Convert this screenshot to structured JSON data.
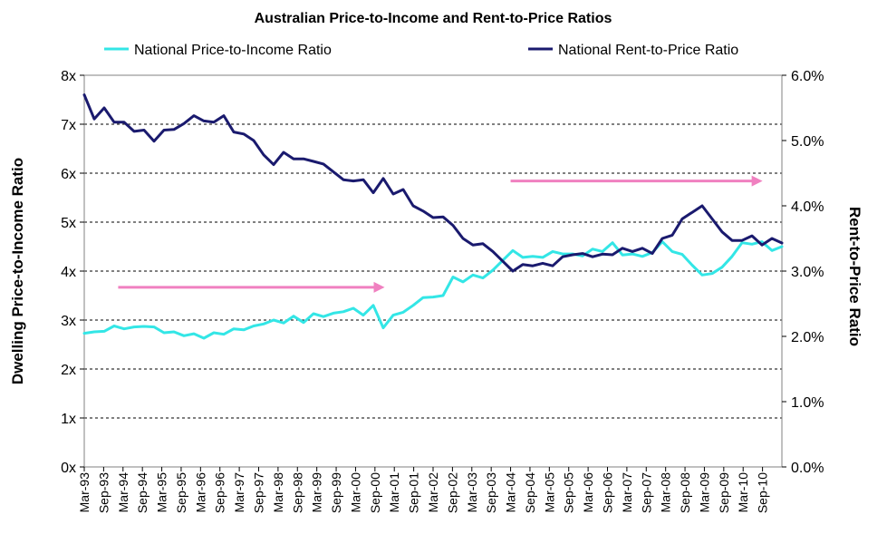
{
  "chart_data": {
    "type": "line",
    "title": "Australian Price-to-Income and Rent-to-Price Ratios",
    "ylabel_left": "Dwelling Price-to-Income Ratio",
    "ylabel_right": "Rent-to-Price Ratio",
    "ylim_left": [
      0,
      8
    ],
    "ylim_right": [
      0,
      6
    ],
    "yticks_left": [
      "0x",
      "1x",
      "2x",
      "3x",
      "4x",
      "5x",
      "6x",
      "7x",
      "8x"
    ],
    "yticks_right": [
      "0.0%",
      "1.0%",
      "2.0%",
      "3.0%",
      "4.0%",
      "5.0%",
      "6.0%"
    ],
    "grid": "horizontal dashed",
    "legend_position": "top",
    "x_tick_labels": [
      "Mar-93",
      "Sep-93",
      "Mar-94",
      "Sep-94",
      "Mar-95",
      "Sep-95",
      "Mar-96",
      "Sep-96",
      "Mar-97",
      "Sep-97",
      "Mar-98",
      "Sep-98",
      "Mar-99",
      "Sep-99",
      "Mar-00",
      "Sep-00",
      "Mar-01",
      "Sep-01",
      "Mar-02",
      "Sep-02",
      "Mar-03",
      "Sep-03",
      "Mar-04",
      "Sep-04",
      "Mar-05",
      "Sep-05",
      "Mar-06",
      "Sep-06",
      "Mar-07",
      "Sep-07",
      "Mar-08",
      "Sep-08",
      "Mar-09",
      "Sep-09",
      "Mar-10",
      "Sep-10"
    ],
    "series": [
      {
        "name": "National Price-to-Income Ratio",
        "axis": "left",
        "color": "#33e6e6",
        "values": [
          2.73,
          2.76,
          2.77,
          2.88,
          2.82,
          2.86,
          2.87,
          2.86,
          2.74,
          2.76,
          2.68,
          2.72,
          2.63,
          2.74,
          2.71,
          2.82,
          2.8,
          2.88,
          2.92,
          3,
          2.94,
          3.08,
          2.95,
          3.13,
          3.07,
          3.14,
          3.17,
          3.24,
          3.1,
          3.3,
          2.84,
          3.1,
          3.16,
          3.3,
          3.46,
          3.47,
          3.5,
          3.88,
          3.78,
          3.92,
          3.86,
          4.02,
          4.22,
          4.42,
          4.28,
          4.3,
          4.28,
          4.4,
          4.35,
          4.35,
          4.31,
          4.45,
          4.4,
          4.58,
          4.33,
          4.35,
          4.3,
          4.38,
          4.6,
          4.4,
          4.34,
          4.12,
          3.92,
          3.95,
          4.08,
          4.3,
          4.58,
          4.55,
          4.6,
          4.42,
          4.5
        ]
      },
      {
        "name": "National Rent-to-Price Ratio",
        "axis": "right",
        "color": "#1a1a6e",
        "values": [
          5.7,
          5.33,
          5.5,
          5.28,
          5.28,
          5.14,
          5.16,
          4.99,
          5.16,
          5.17,
          5.26,
          5.38,
          5.3,
          5.28,
          5.38,
          5.13,
          5.1,
          5.0,
          4.78,
          4.63,
          4.82,
          4.72,
          4.72,
          4.68,
          4.64,
          4.52,
          4.4,
          4.38,
          4.4,
          4.2,
          4.42,
          4.18,
          4.25,
          4.0,
          3.92,
          3.82,
          3.83,
          3.7,
          3.5,
          3.4,
          3.42,
          3.3,
          3.15,
          3.0,
          3.1,
          3.08,
          3.12,
          3.08,
          3.22,
          3.25,
          3.27,
          3.22,
          3.26,
          3.25,
          3.35,
          3.3,
          3.35,
          3.27,
          3.5,
          3.55,
          3.8,
          3.9,
          4.0,
          3.8,
          3.6,
          3.47,
          3.47,
          3.54,
          3.4,
          3.5,
          3.43
        ]
      }
    ],
    "annotations": [
      {
        "type": "arrow",
        "color": "#f080c0",
        "description": "flat trend arrow",
        "from": {
          "x": 1.75,
          "y": 3.67
        },
        "to": {
          "x": 15.5,
          "y": 3.67
        },
        "axis": "left"
      },
      {
        "type": "arrow",
        "color": "#f080c0",
        "description": "flat trend arrow",
        "from": {
          "x": 22.0,
          "y": 4.38
        },
        "to": {
          "x": 35.0,
          "y": 4.38
        },
        "axis": "right"
      }
    ]
  }
}
